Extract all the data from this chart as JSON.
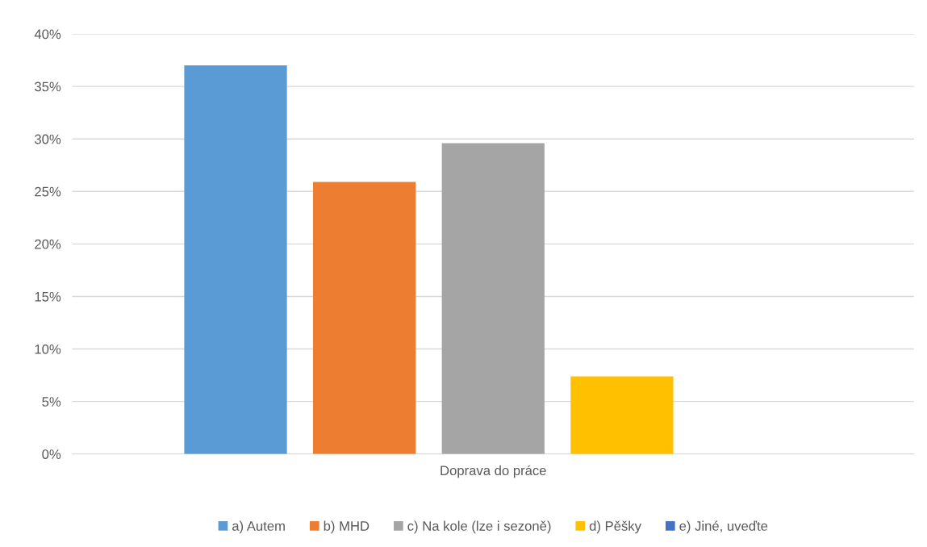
{
  "chart_data": {
    "type": "bar",
    "categories": [
      "Doprava do práce"
    ],
    "series": [
      {
        "name": "a) Autem",
        "color": "#5b9bd5",
        "values": [
          37.0
        ]
      },
      {
        "name": "b) MHD",
        "color": "#ed7d31",
        "values": [
          25.9
        ]
      },
      {
        "name": "c) Na kole (lze i sezoně)",
        "color": "#a5a5a5",
        "values": [
          29.6
        ]
      },
      {
        "name": "d) Pěšky",
        "color": "#ffc000",
        "values": [
          7.4
        ]
      },
      {
        "name": "e) Jiné, uveďte",
        "color": "#4472c4",
        "values": [
          0
        ]
      }
    ],
    "ylim": [
      0,
      40
    ],
    "yticks": [
      {
        "value": 0,
        "label": "0%"
      },
      {
        "value": 5,
        "label": "5%"
      },
      {
        "value": 10,
        "label": "10%"
      },
      {
        "value": 15,
        "label": "15%"
      },
      {
        "value": 20,
        "label": "20%"
      },
      {
        "value": 25,
        "label": "25%"
      },
      {
        "value": 30,
        "label": "30%"
      },
      {
        "value": 35,
        "label": "35%"
      },
      {
        "value": 40,
        "label": "40%"
      }
    ],
    "grid": "y",
    "legend": "bottom"
  }
}
